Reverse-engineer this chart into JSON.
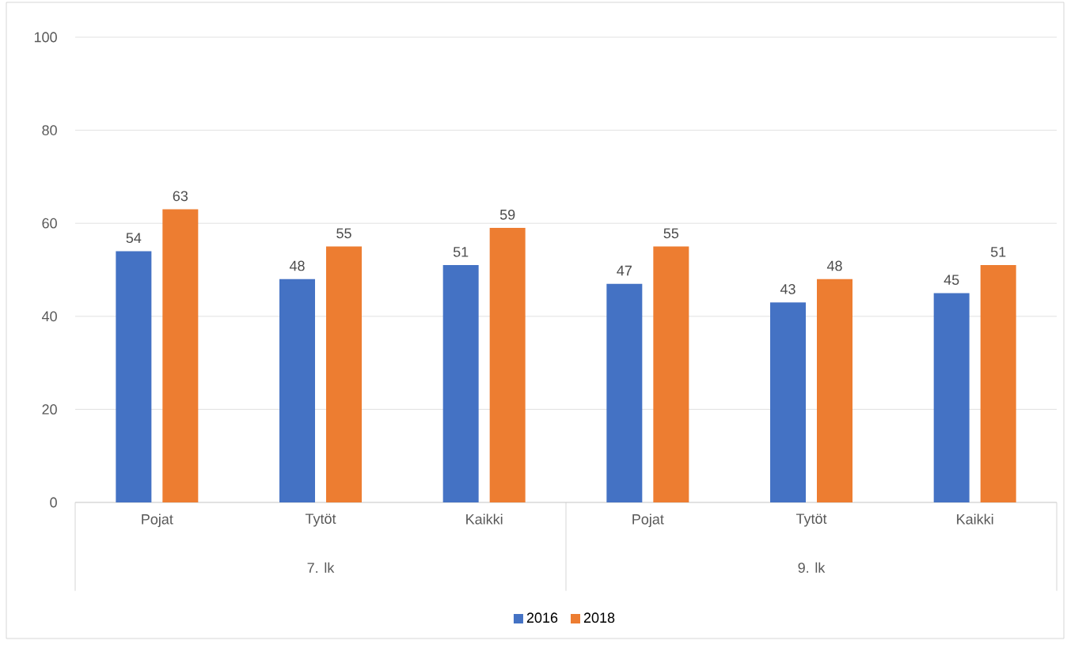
{
  "chart_data": {
    "type": "bar",
    "categories": [
      "Pojat",
      "Tytöt",
      "Kaikki",
      "Pojat",
      "Tytöt",
      "Kaikki"
    ],
    "series": [
      {
        "name": "2016",
        "color": "#4472c4",
        "values": [
          54,
          48,
          51,
          47,
          43,
          45
        ]
      },
      {
        "name": "2018",
        "color": "#ed7d31",
        "values": [
          63,
          55,
          59,
          55,
          48,
          51
        ]
      }
    ],
    "annotations": [
      "7. lk",
      "9. lk"
    ],
    "ylim": [
      0,
      100
    ],
    "yticks": [
      0,
      20,
      40,
      60,
      80,
      100
    ],
    "grid": "y",
    "legend": "bottom",
    "data_labels": true
  }
}
